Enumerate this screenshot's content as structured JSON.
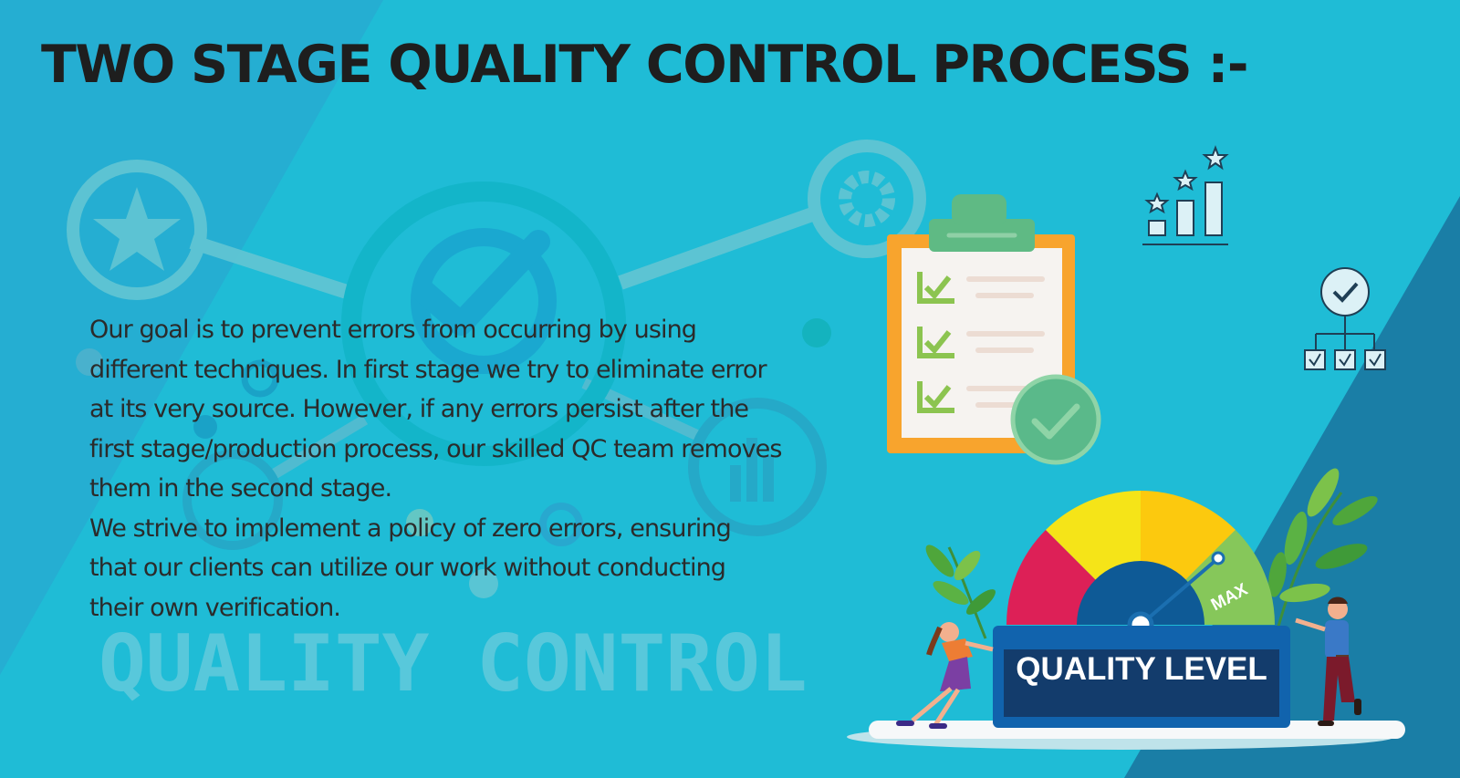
{
  "slide": {
    "title": "TWO STAGE QUALITY CONTROL PROCESS :-",
    "paragraphs": [
      "Our goal is to prevent errors from occurring by using different techniques. In first stage we try to eliminate error at its very source. However, if any errors persist after the first stage/production process, our skilled QC team removes them in the second stage.",
      "We strive to implement a policy of zero errors, ensuring that our clients can utilize our work without conducting their own verification."
    ],
    "watermark": "QUALITY CONTROL"
  },
  "illustration": {
    "gauge_label": "QUALITY LEVEL",
    "gauge_max_label": "MAX",
    "checklist_checks": 3,
    "hierarchy_boxes": 3
  },
  "colors": {
    "background": "#1fbcd6",
    "dark_band": "#1a7ea6",
    "title_text": "#1e1e1e",
    "gauge_red": "#dd2057",
    "gauge_yellow": "#f5e418",
    "gauge_amber": "#fcc90e",
    "gauge_green": "#86c75a",
    "clipboard_orange": "#f8a42d",
    "check_green": "#8cc450"
  }
}
